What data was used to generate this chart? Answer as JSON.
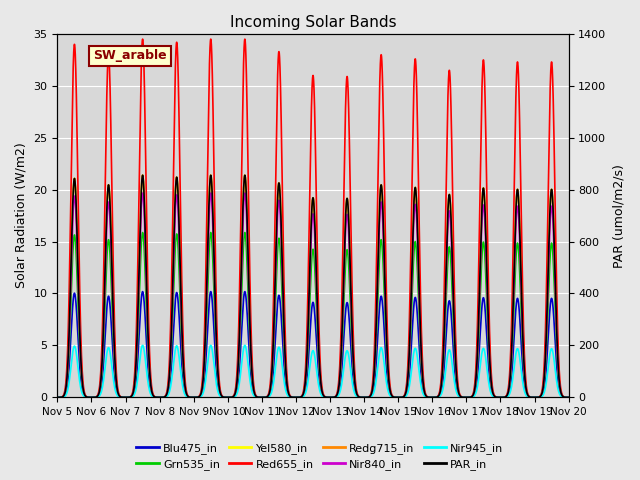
{
  "title": "Incoming Solar Bands",
  "xlabel": "",
  "ylabel_left": "Solar Radiation (W/m2)",
  "ylabel_right": "PAR (umol/m2/s)",
  "annotation_text": "SW_arable",
  "annotation_color": "#8B0000",
  "annotation_bg": "#FFFFCC",
  "annotation_border": "#8B0000",
  "ylim_left": [
    0,
    35
  ],
  "ylim_right": [
    0,
    1400
  ],
  "bg_color": "#E8E8E8",
  "plot_bg": "#D8D8D8",
  "series": [
    {
      "name": "Blu475_in",
      "color": "#0000CC",
      "lw": 1.2,
      "scale": 0.295
    },
    {
      "name": "Grn535_in",
      "color": "#00CC00",
      "lw": 1.2,
      "scale": 0.46
    },
    {
      "name": "Yel580_in",
      "color": "#FFFF00",
      "lw": 1.2,
      "scale": 0.62
    },
    {
      "name": "Red655_in",
      "color": "#FF0000",
      "lw": 1.2,
      "scale": 1.0
    },
    {
      "name": "Redg715_in",
      "color": "#FF8800",
      "lw": 1.2,
      "scale": 0.62
    },
    {
      "name": "Nir840_in",
      "color": "#CC00CC",
      "lw": 1.2,
      "scale": 0.57
    },
    {
      "name": "Nir945_in",
      "color": "#00FFFF",
      "lw": 1.2,
      "scale": 0.145
    },
    {
      "name": "PAR_in",
      "color": "#000000",
      "lw": 1.2,
      "scale": 0.62,
      "secondary": true
    }
  ],
  "day_peaks": [
    34.0,
    33.0,
    34.5,
    34.2,
    34.5,
    34.5,
    33.3,
    31.0,
    30.9,
    33.0,
    32.6,
    31.5,
    32.5,
    32.3,
    32.3
  ],
  "start_day": 5,
  "end_day": 20,
  "par_scale_factor": 40.0,
  "grid_color": "#FFFFFF",
  "sigma": 0.1,
  "legend_order": [
    "Blu475_in",
    "Grn535_in",
    "Yel580_in",
    "Red655_in",
    "Redg715_in",
    "Nir840_in",
    "Nir945_in",
    "PAR_in"
  ],
  "legend_colors": [
    "#0000CC",
    "#00CC00",
    "#FFFF00",
    "#FF0000",
    "#FF8800",
    "#CC00CC",
    "#00FFFF",
    "#000000"
  ]
}
